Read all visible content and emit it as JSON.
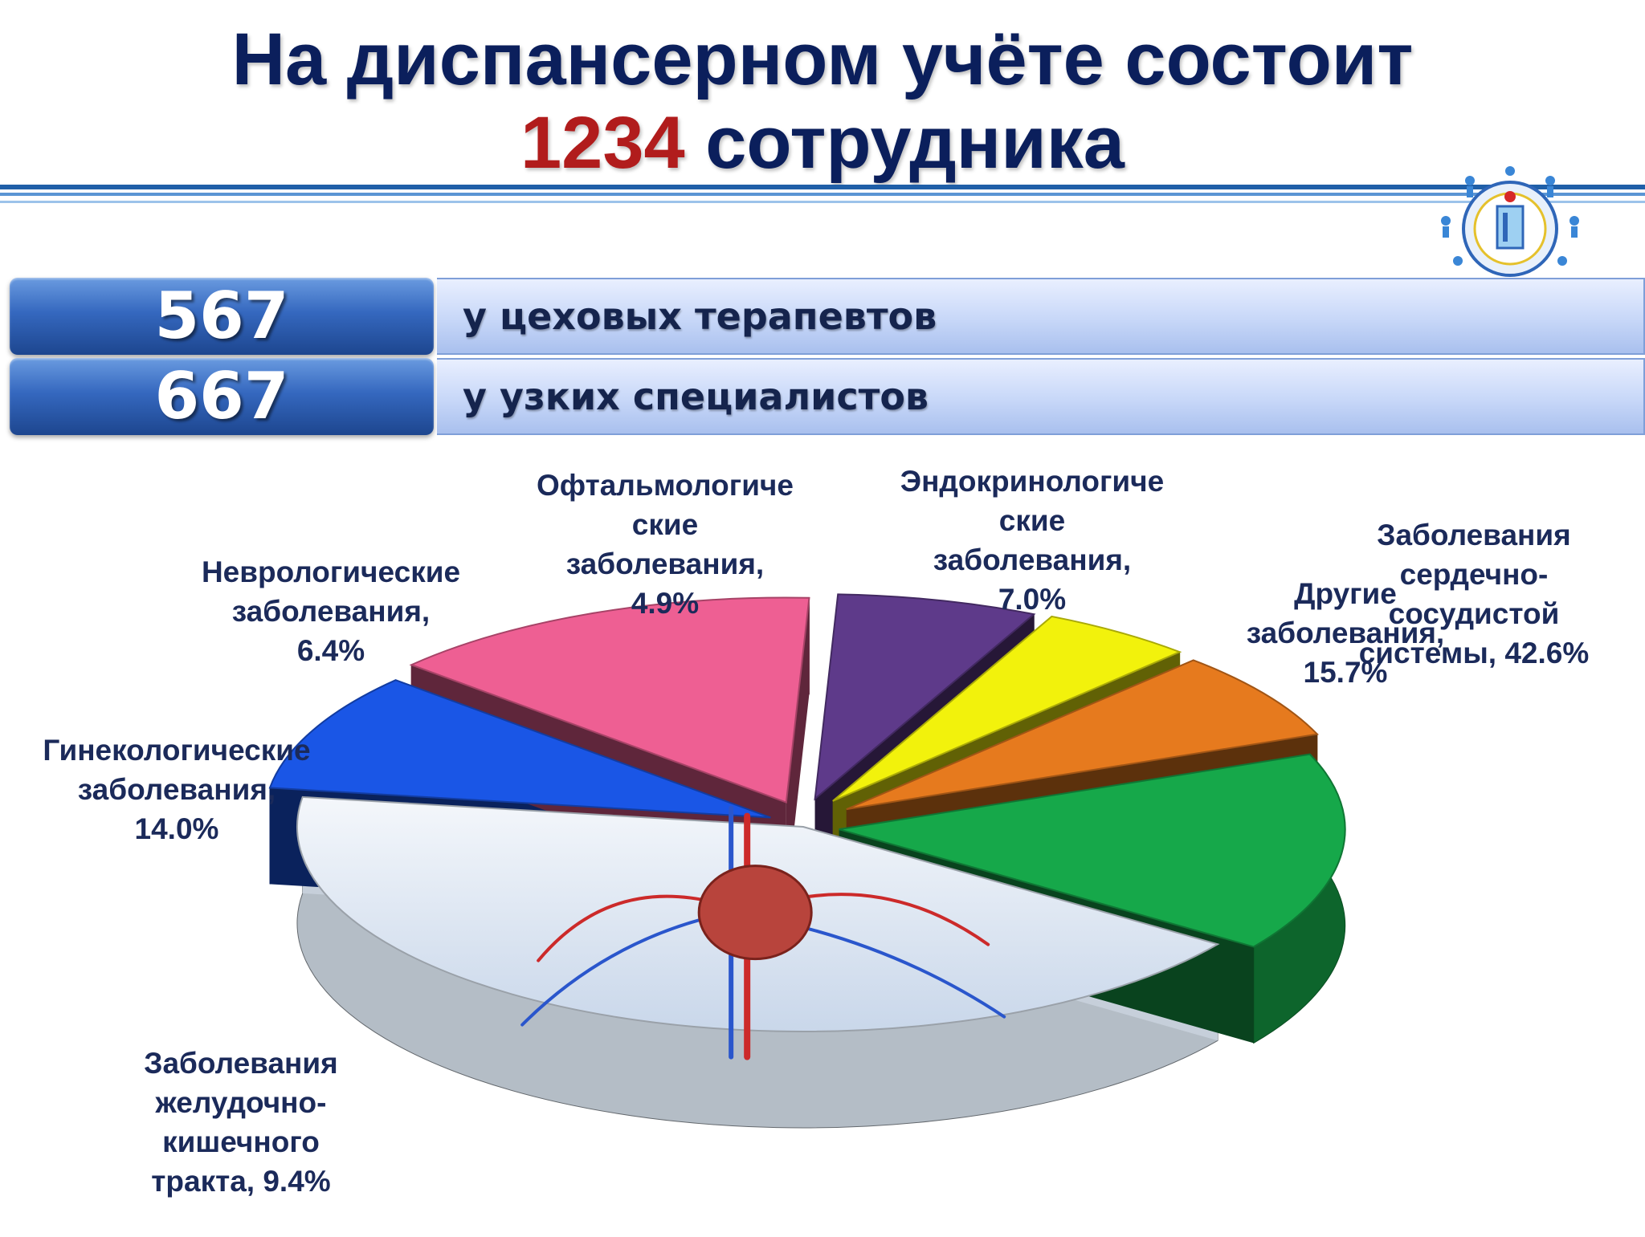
{
  "title": {
    "line1": "На диспансерном  учёте состоит",
    "number": "1234",
    "line2_rest": " сотрудника"
  },
  "rows": [
    {
      "value": "567",
      "label": "у цеховых терапевтов"
    },
    {
      "value": "667",
      "label": "у узких специалистов"
    }
  ],
  "colors": {
    "title": "#0b1f5c",
    "accent_number": "#b11c1c",
    "row_blue": "#3568bf"
  },
  "chart_data": {
    "type": "pie",
    "series": [
      {
        "label": "Заболевания\nсердечно-\nсосудистой\nсистемы, 42.6%",
        "value": 42.6,
        "color": "#dce6f2"
      },
      {
        "label": "Заболевания\nжелудочно-\nкишечного\nтракта, 9.4%",
        "value": 9.4,
        "color": "#1a56e6"
      },
      {
        "label": "Гинекологические\nзаболевания,\n14.0%",
        "value": 14.0,
        "color": "#ee5f93"
      },
      {
        "label": "Неврологические\nзаболевания,\n6.4%",
        "value": 6.4,
        "color": "#5e3a8a"
      },
      {
        "label": "Офтальмологиче\nские\nзаболевания,\n4.9%",
        "value": 4.9,
        "color": "#f2f20c"
      },
      {
        "label": "Эндокринологиче\nские\nзаболевания,\n7.0%",
        "value": 7.0,
        "color": "#e67a1e"
      },
      {
        "label": "Другие\nзаболевания,\n15.7%",
        "value": 15.7,
        "color": "#16a84a"
      }
    ]
  }
}
